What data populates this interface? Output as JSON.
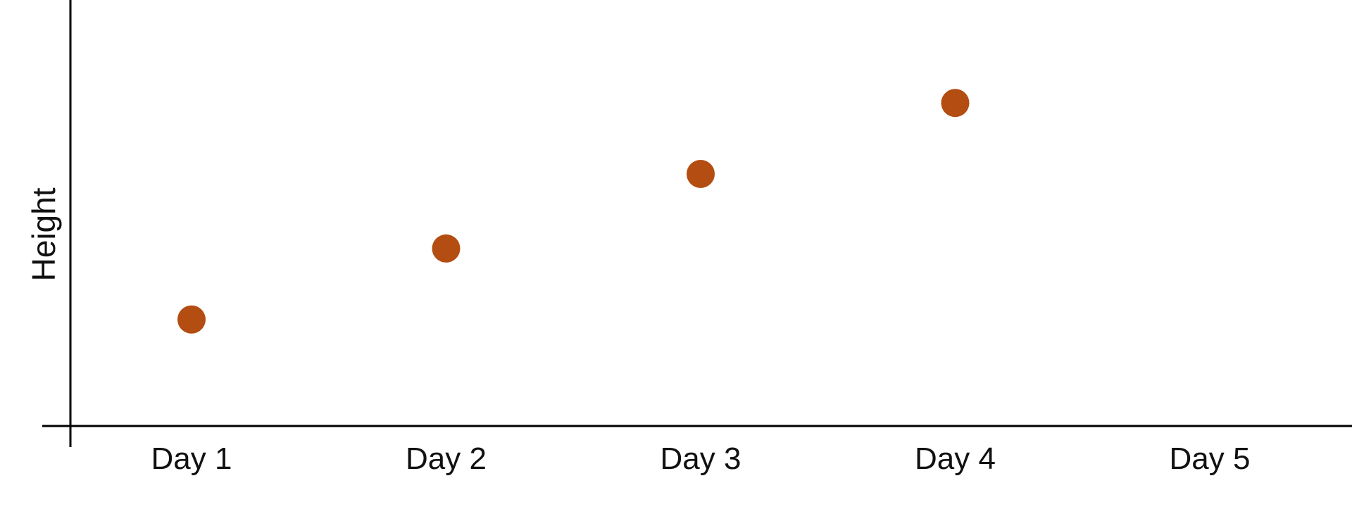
{
  "chart_data": {
    "type": "scatter",
    "title": "",
    "xlabel": "",
    "ylabel": "Height",
    "categories": [
      "Day 1",
      "Day 2",
      "Day 3",
      "Day 4",
      "Day 5"
    ],
    "series": [
      {
        "name": "Height",
        "color": "#b34d12",
        "values": [
          1.5,
          2.5,
          3.55,
          4.55,
          null
        ]
      }
    ],
    "ylim": [
      0,
      6
    ],
    "grid": false,
    "legend": "none"
  }
}
